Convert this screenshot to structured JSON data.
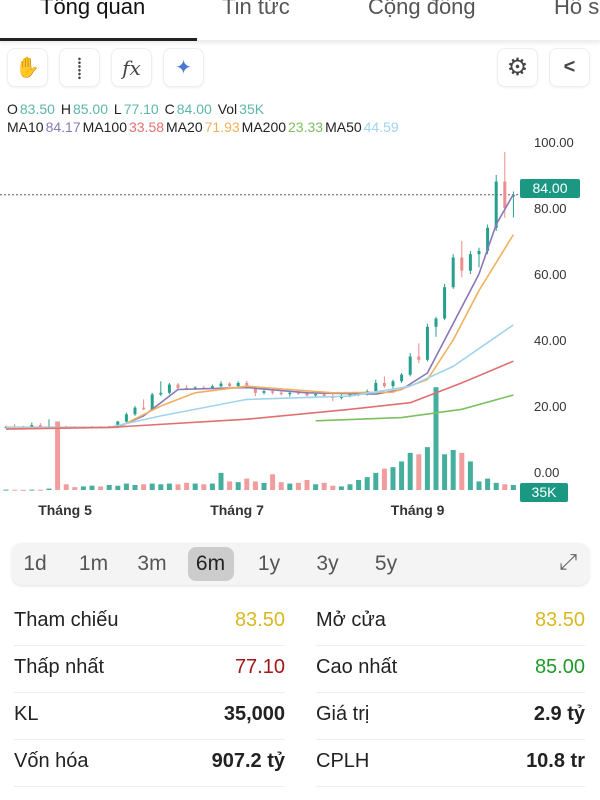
{
  "tabs": [
    {
      "label": "Tổng quan",
      "active": true
    },
    {
      "label": "Tin tức"
    },
    {
      "label": "Cộng đồng"
    },
    {
      "label": "Hồ s"
    }
  ],
  "toolbar": {
    "left": [
      {
        "icon": "hand-icon",
        "glyph": "✋"
      },
      {
        "icon": "crosshair-icon",
        "glyph": "⸽"
      },
      {
        "icon": "function-icon",
        "glyph": "fx"
      },
      {
        "icon": "ai-sparkle-icon",
        "glyph": "✦"
      }
    ],
    "right": [
      {
        "icon": "gear-icon",
        "glyph": "⚙"
      },
      {
        "icon": "share-icon",
        "glyph": "<"
      }
    ]
  },
  "ohlc": {
    "o_label": "O",
    "o": "83.50",
    "h_label": "H",
    "h": "85.00",
    "l_label": "L",
    "l": "77.10",
    "c_label": "C",
    "c": "84.00",
    "vol_label": "Vol",
    "vol": "35K"
  },
  "ma_legend": [
    {
      "label": "MA10",
      "value": "84.17",
      "color": "#8878b8"
    },
    {
      "label": "MA100",
      "value": "33.58",
      "color": "#e07070"
    },
    {
      "label": "MA20",
      "value": "71.93",
      "color": "#f0b060"
    },
    {
      "label": "MA200",
      "value": "23.33",
      "color": "#7cc060"
    },
    {
      "label": "MA50",
      "value": "44.59",
      "color": "#9fd4ec"
    }
  ],
  "colors": {
    "up": "#26a08c",
    "down": "#f08c8c",
    "tag": "#1a9882",
    "ohlc_value": "#5bb8a8"
  },
  "chart_data": {
    "type": "candlestick",
    "yticks": [
      "100.00",
      "80.00",
      "60.00",
      "40.00",
      "20.00",
      "0.00"
    ],
    "ytick_values": [
      100,
      80,
      60,
      40,
      20,
      0
    ],
    "ylim": [
      0,
      100
    ],
    "last_price": "84.00",
    "last_volume": "35K",
    "x_labels": [
      {
        "label": "Tháng 5",
        "index": 7
      },
      {
        "label": "Tháng 7",
        "index": 27
      },
      {
        "label": "Tháng 9",
        "index": 48
      }
    ],
    "candles_fields": [
      "open",
      "high",
      "low",
      "close",
      "volume_k"
    ],
    "candles": [
      [
        13.5,
        14,
        13.3,
        13.6,
        3
      ],
      [
        13.6,
        14.5,
        13.4,
        13.5,
        2
      ],
      [
        13.5,
        14,
        13.2,
        13.4,
        1
      ],
      [
        13.4,
        15,
        13.3,
        14.2,
        3
      ],
      [
        14.2,
        14.8,
        13.6,
        13.7,
        2
      ],
      [
        13.7,
        16,
        13.5,
        13.8,
        10
      ],
      [
        13.8,
        15,
        13.4,
        13.6,
        480
      ],
      [
        13.6,
        14,
        13.3,
        13.5,
        40
      ],
      [
        13.5,
        13.9,
        13.2,
        13.4,
        20
      ],
      [
        13.4,
        13.8,
        13.1,
        13.5,
        25
      ],
      [
        13.5,
        13.9,
        13.3,
        13.6,
        30
      ],
      [
        13.6,
        13.9,
        13.3,
        13.5,
        25
      ],
      [
        13.5,
        14,
        13.4,
        13.7,
        35
      ],
      [
        13.7,
        15.5,
        13.6,
        15.3,
        30
      ],
      [
        15.3,
        18,
        15,
        17.5,
        45
      ],
      [
        17.5,
        20,
        17,
        19.5,
        35
      ],
      [
        19.5,
        22,
        18.8,
        19,
        40
      ],
      [
        19,
        24,
        18.5,
        23.5,
        45
      ],
      [
        23.5,
        27.5,
        23,
        24,
        40
      ],
      [
        24,
        27,
        23.5,
        26.5,
        45
      ],
      [
        26.5,
        27,
        25,
        25.5,
        40
      ],
      [
        25.5,
        26.3,
        24.8,
        25.2,
        50
      ],
      [
        25.2,
        26,
        24.9,
        25.6,
        45
      ],
      [
        25.6,
        26.2,
        25,
        25.4,
        40
      ],
      [
        25.4,
        26.5,
        25.1,
        26,
        45
      ],
      [
        26,
        27.5,
        25.5,
        26.8,
        120
      ],
      [
        26.8,
        27.2,
        25.8,
        26,
        60
      ],
      [
        26,
        27.5,
        25.5,
        27,
        55
      ],
      [
        27,
        27.6,
        25.2,
        25.5,
        80
      ],
      [
        25.5,
        26,
        23,
        24,
        60
      ],
      [
        24,
        25.5,
        23.5,
        24.5,
        50
      ],
      [
        24.5,
        25,
        23.5,
        24,
        110
      ],
      [
        24,
        24.8,
        23.2,
        23.6,
        55
      ],
      [
        23.6,
        24.5,
        22.8,
        24,
        45
      ],
      [
        24,
        25,
        23.4,
        23.8,
        50
      ],
      [
        23.8,
        24.5,
        22.9,
        23.2,
        70
      ],
      [
        23.2,
        24,
        22.5,
        23.6,
        40
      ],
      [
        23.6,
        24.2,
        22.8,
        23,
        50
      ],
      [
        23,
        23.8,
        21.5,
        22.4,
        30
      ],
      [
        22.4,
        23.5,
        22,
        23.2,
        25
      ],
      [
        23.2,
        24,
        22.6,
        23.5,
        40
      ],
      [
        23.5,
        24.2,
        23,
        23.8,
        70
      ],
      [
        23.8,
        25,
        23.2,
        24.5,
        90
      ],
      [
        24.5,
        28,
        24,
        27,
        120
      ],
      [
        27,
        29,
        25.5,
        26,
        150
      ],
      [
        26,
        28,
        25.2,
        27.5,
        160
      ],
      [
        27.5,
        30,
        27,
        29.5,
        200
      ],
      [
        29.5,
        36,
        29,
        35,
        260
      ],
      [
        35,
        39,
        33,
        34,
        250
      ],
      [
        34,
        45,
        33.5,
        44,
        300
      ],
      [
        44,
        47,
        41,
        46.5,
        720
      ],
      [
        46.5,
        57,
        46,
        56,
        250
      ],
      [
        56,
        66,
        55.5,
        65,
        280
      ],
      [
        65,
        70,
        59,
        61,
        260
      ],
      [
        61,
        67,
        60,
        66,
        200
      ],
      [
        66,
        68,
        62,
        67,
        60
      ],
      [
        67,
        75,
        66,
        74,
        80
      ],
      [
        74,
        90,
        73,
        88,
        50
      ],
      [
        88,
        97,
        77,
        80,
        40
      ],
      [
        83.5,
        85,
        77.1,
        84,
        35
      ]
    ],
    "moving_averages": [
      {
        "name": "MA10",
        "color": "#8878b8",
        "points": [
          [
            0,
            13.5
          ],
          [
            13,
            13.6
          ],
          [
            16,
            17
          ],
          [
            20,
            25
          ],
          [
            28,
            25.6
          ],
          [
            35,
            24
          ],
          [
            43,
            23.6
          ],
          [
            46,
            25
          ],
          [
            49,
            30
          ],
          [
            52,
            45
          ],
          [
            55,
            60
          ],
          [
            57,
            75
          ],
          [
            59,
            84.17
          ]
        ]
      },
      {
        "name": "MA20",
        "color": "#f0b060",
        "points": [
          [
            0,
            13.5
          ],
          [
            13,
            13.5
          ],
          [
            18,
            20
          ],
          [
            22,
            24
          ],
          [
            28,
            26
          ],
          [
            38,
            24
          ],
          [
            45,
            24.2
          ],
          [
            49,
            28
          ],
          [
            52,
            40
          ],
          [
            55,
            55
          ],
          [
            59,
            71.93
          ]
        ]
      },
      {
        "name": "MA50",
        "color": "#9fd4ec",
        "points": [
          [
            0,
            13.4
          ],
          [
            12,
            13.5
          ],
          [
            18,
            17
          ],
          [
            28,
            22
          ],
          [
            40,
            23
          ],
          [
            47,
            26
          ],
          [
            52,
            32
          ],
          [
            59,
            44.59
          ]
        ]
      },
      {
        "name": "MA100",
        "color": "#e07070",
        "points": [
          [
            0,
            13
          ],
          [
            12,
            13.5
          ],
          [
            28,
            16
          ],
          [
            40,
            19
          ],
          [
            47,
            21
          ],
          [
            53,
            27
          ],
          [
            59,
            33.58
          ]
        ]
      },
      {
        "name": "MA200",
        "color": "#7cc060",
        "points": [
          [
            36,
            15.5
          ],
          [
            46,
            16.5
          ],
          [
            53,
            19
          ],
          [
            59,
            23.33
          ]
        ]
      }
    ]
  },
  "ranges": [
    {
      "label": "1d"
    },
    {
      "label": "1m"
    },
    {
      "label": "3m"
    },
    {
      "label": "6m",
      "active": true
    },
    {
      "label": "1y"
    },
    {
      "label": "3y"
    },
    {
      "label": "5y"
    }
  ],
  "stats": {
    "left": [
      {
        "label": "Tham chiếu",
        "value": "83.50",
        "color": "#d9b820"
      },
      {
        "label": "Thấp nhất",
        "value": "77.10",
        "color": "#a01818"
      },
      {
        "label": "KL",
        "value": "35,000",
        "color": "#222"
      },
      {
        "label": "Vốn hóa",
        "value": "907.2 tỷ",
        "color": "#222"
      }
    ],
    "right": [
      {
        "label": "Mở cửa",
        "value": "83.50",
        "color": "#d9b820"
      },
      {
        "label": "Cao nhất",
        "value": "85.00",
        "color": "#1e9a2a"
      },
      {
        "label": "Giá trị",
        "value": "2.9 tỷ",
        "color": "#222"
      },
      {
        "label": "CPLH",
        "value": "10.8 tr",
        "color": "#222"
      }
    ]
  }
}
